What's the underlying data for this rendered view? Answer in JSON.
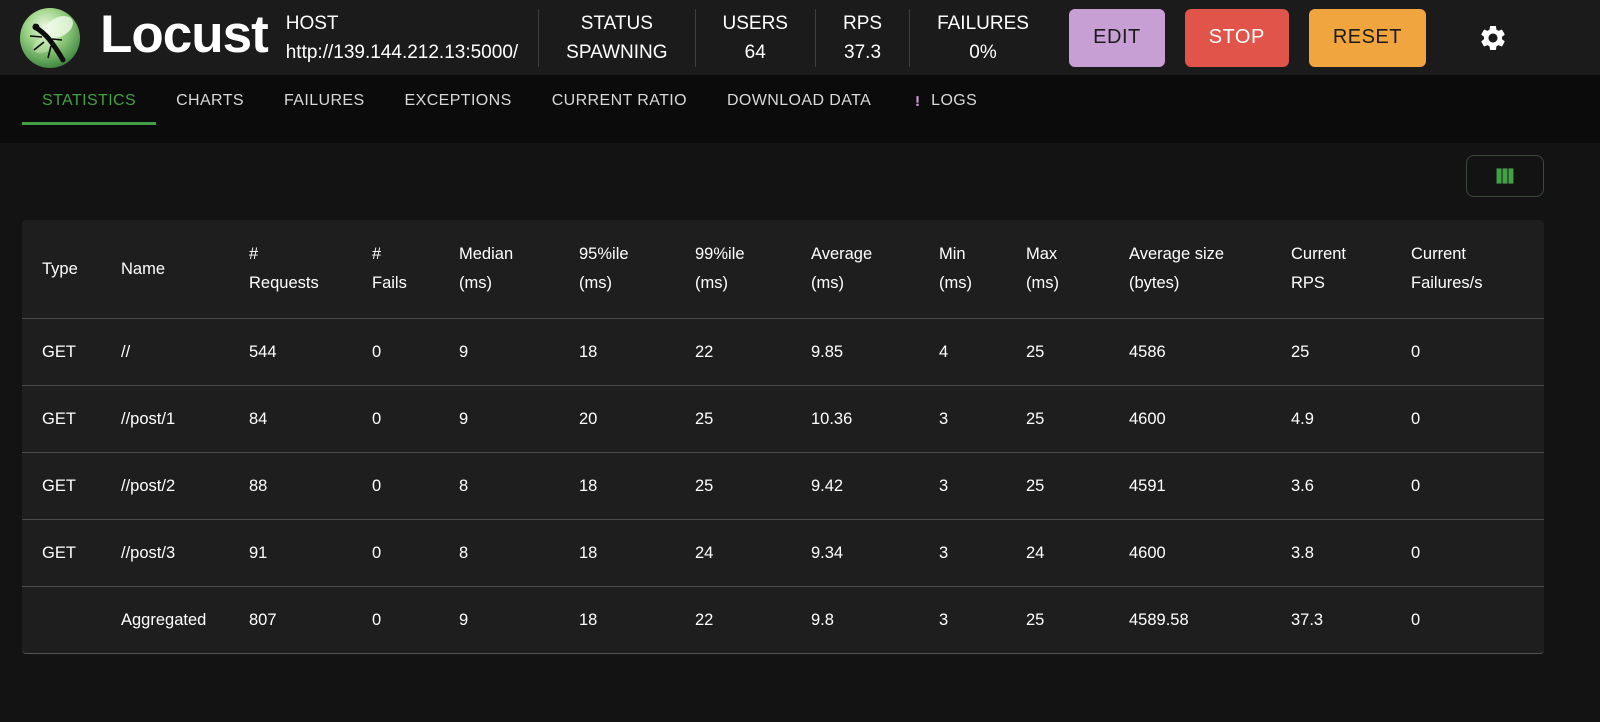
{
  "header": {
    "brand": "Locust",
    "host_label": "HOST",
    "host_value": "http://139.144.212.13:5000/",
    "stats": [
      {
        "id": "status",
        "label": "STATUS",
        "value": "SPAWNING"
      },
      {
        "id": "users",
        "label": "USERS",
        "value": "64"
      },
      {
        "id": "rps",
        "label": "RPS",
        "value": "37.3"
      },
      {
        "id": "failures",
        "label": "FAILURES",
        "value": "0%"
      }
    ],
    "buttons": [
      {
        "id": "edit",
        "label": "EDIT",
        "bg": "#c79fd4",
        "fg": "#1b1b1b"
      },
      {
        "id": "stop",
        "label": "STOP",
        "bg": "#e0544a",
        "fg": "#ffffff"
      },
      {
        "id": "reset",
        "label": "RESET",
        "bg": "#f1a53e",
        "fg": "#1b1b1b"
      }
    ]
  },
  "tabs": [
    {
      "id": "statistics",
      "label": "STATISTICS",
      "active": true
    },
    {
      "id": "charts",
      "label": "CHARTS"
    },
    {
      "id": "failures",
      "label": "FAILURES"
    },
    {
      "id": "exceptions",
      "label": "EXCEPTIONS"
    },
    {
      "id": "current-ratio",
      "label": "CURRENT RATIO"
    },
    {
      "id": "download-data",
      "label": "DOWNLOAD DATA"
    },
    {
      "id": "logs",
      "label": "LOGS",
      "icon": "exclamation-icon"
    }
  ],
  "colors": {
    "accent_green": "#43a047",
    "purple": "#ce93d8",
    "edit_bg": "#c79fd4",
    "stop_bg": "#e0544a",
    "reset_bg": "#f1a53e"
  },
  "table": {
    "columns": [
      {
        "line1": "Type",
        "line2": ""
      },
      {
        "line1": "Name",
        "line2": ""
      },
      {
        "line1": "#",
        "line2": "Requests"
      },
      {
        "line1": "#",
        "line2": "Fails"
      },
      {
        "line1": "Median",
        "line2": "(ms)"
      },
      {
        "line1": "95%ile",
        "line2": "(ms)"
      },
      {
        "line1": "99%ile",
        "line2": "(ms)"
      },
      {
        "line1": "Average",
        "line2": "(ms)"
      },
      {
        "line1": "Min",
        "line2": "(ms)"
      },
      {
        "line1": "Max",
        "line2": "(ms)"
      },
      {
        "line1": "Average size",
        "line2": "(bytes)"
      },
      {
        "line1": "Current",
        "line2": "RPS"
      },
      {
        "line1": "Current",
        "line2": "Failures/s"
      }
    ],
    "rows": [
      [
        "GET",
        "//",
        "544",
        "0",
        "9",
        "18",
        "22",
        "9.85",
        "4",
        "25",
        "4586",
        "25",
        "0"
      ],
      [
        "GET",
        "//post/1",
        "84",
        "0",
        "9",
        "20",
        "25",
        "10.36",
        "3",
        "25",
        "4600",
        "4.9",
        "0"
      ],
      [
        "GET",
        "//post/2",
        "88",
        "0",
        "8",
        "18",
        "25",
        "9.42",
        "3",
        "25",
        "4591",
        "3.6",
        "0"
      ],
      [
        "GET",
        "//post/3",
        "91",
        "0",
        "8",
        "18",
        "24",
        "9.34",
        "3",
        "24",
        "4600",
        "3.8",
        "0"
      ],
      [
        "",
        "Aggregated",
        "807",
        "0",
        "9",
        "18",
        "22",
        "9.8",
        "3",
        "25",
        "4589.58",
        "37.3",
        "0"
      ]
    ]
  }
}
